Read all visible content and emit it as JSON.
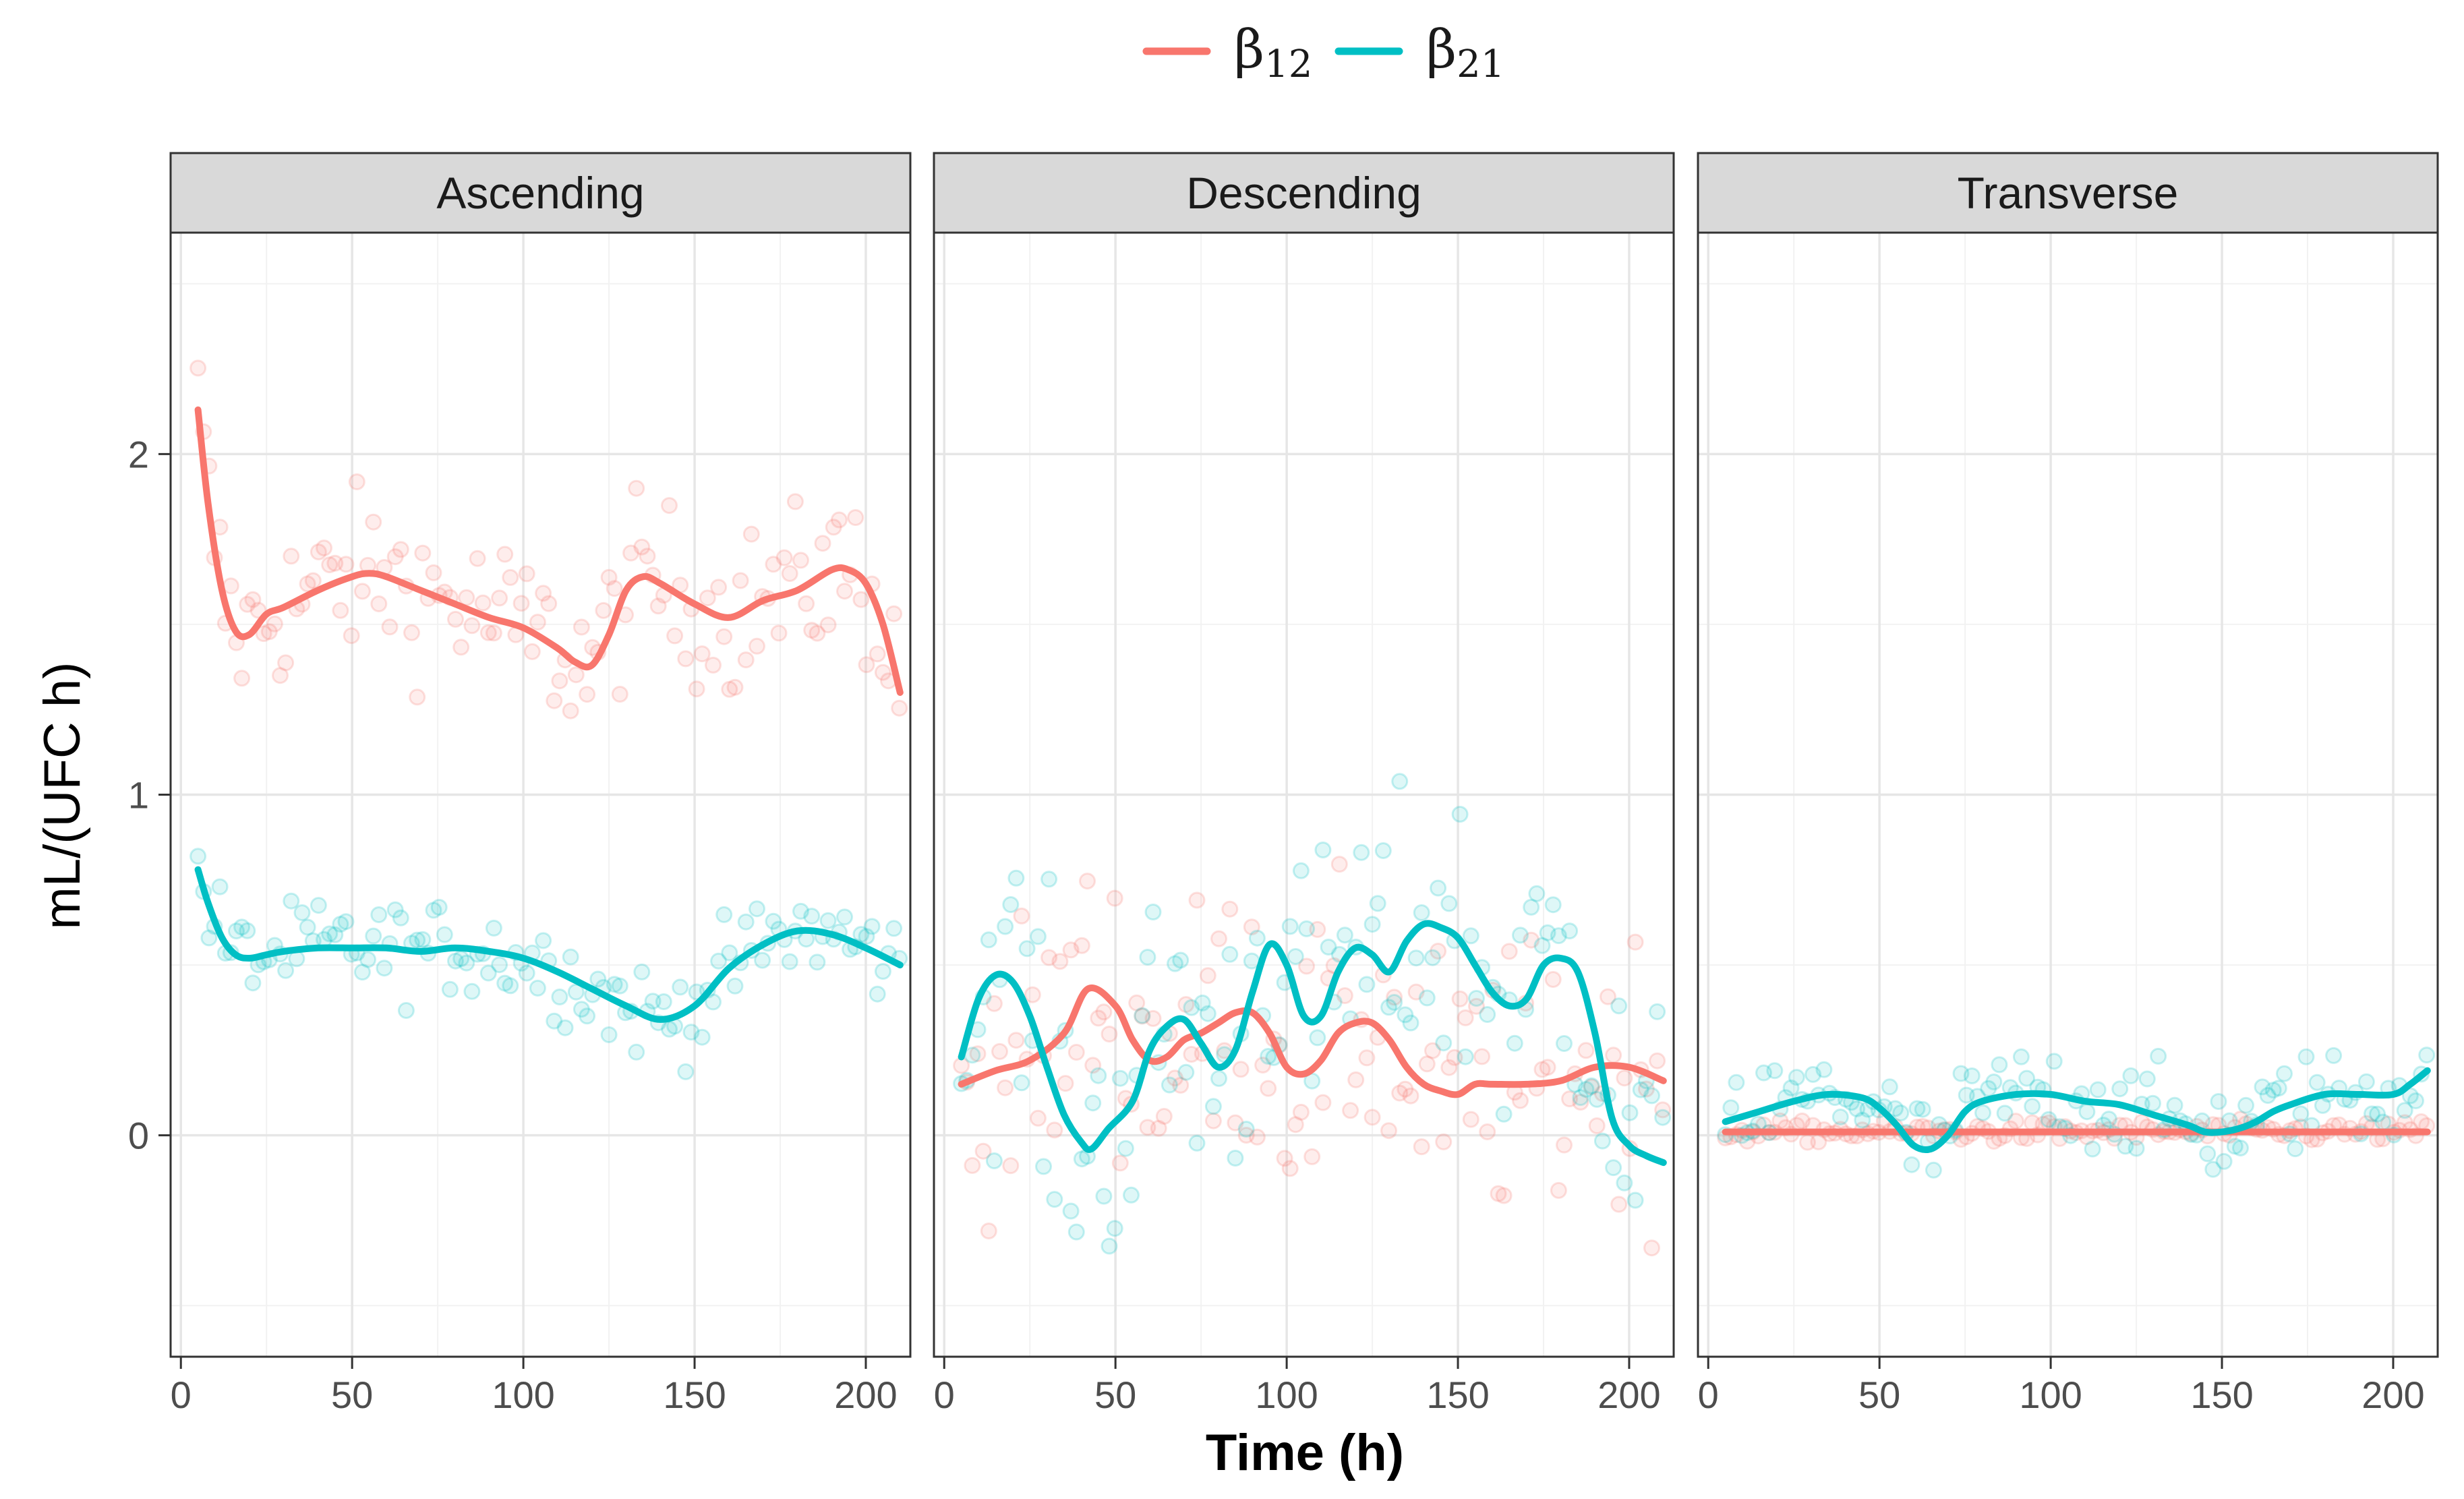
{
  "chart_data": {
    "type": "line",
    "layout": "faceted",
    "xlabel": "Time (h)",
    "ylabel": "mL/(UFC h)",
    "xlim": [
      -3,
      213
    ],
    "ylim": [
      -0.65,
      2.65
    ],
    "x_ticks": [
      0,
      50,
      100,
      150,
      200
    ],
    "y_ticks": [
      0,
      1,
      2
    ],
    "grid": true,
    "legend_position": "top",
    "legend": [
      {
        "symbol": "β",
        "sub": "12",
        "color": "#f8766d"
      },
      {
        "symbol": "β",
        "sub": "21",
        "color": "#00bfc4"
      }
    ],
    "panels": [
      {
        "name": "Ascending",
        "series": [
          {
            "name": "β12",
            "color": "#f8766d",
            "x": [
              5,
              8,
              12,
              16,
              20,
              25,
              30,
              40,
              50,
              55,
              60,
              70,
              80,
              90,
              100,
              110,
              115,
              120,
              125,
              130,
              135,
              140,
              150,
              160,
              170,
              180,
              190,
              195,
              200,
              205,
              210
            ],
            "y": [
              2.13,
              1.85,
              1.6,
              1.48,
              1.47,
              1.53,
              1.55,
              1.6,
              1.64,
              1.65,
              1.64,
              1.6,
              1.56,
              1.52,
              1.49,
              1.43,
              1.39,
              1.38,
              1.47,
              1.6,
              1.64,
              1.62,
              1.56,
              1.52,
              1.57,
              1.6,
              1.66,
              1.66,
              1.62,
              1.5,
              1.3
            ]
          },
          {
            "name": "β21",
            "color": "#00bfc4",
            "x": [
              5,
              8,
              12,
              16,
              20,
              25,
              30,
              40,
              50,
              60,
              70,
              80,
              90,
              100,
              110,
              120,
              130,
              140,
              150,
              160,
              170,
              180,
              190,
              200,
              210
            ],
            "y": [
              0.78,
              0.68,
              0.58,
              0.53,
              0.52,
              0.53,
              0.54,
              0.55,
              0.55,
              0.55,
              0.54,
              0.55,
              0.54,
              0.52,
              0.48,
              0.43,
              0.38,
              0.34,
              0.38,
              0.49,
              0.56,
              0.6,
              0.59,
              0.55,
              0.5
            ]
          }
        ]
      },
      {
        "name": "Descending",
        "series": [
          {
            "name": "β12",
            "color": "#f8766d",
            "x": [
              5,
              15,
              25,
              35,
              42,
              50,
              55,
              60,
              65,
              70,
              75,
              80,
              85,
              90,
              95,
              100,
              105,
              110,
              115,
              120,
              125,
              130,
              135,
              140,
              145,
              150,
              155,
              160,
              170,
              180,
              190,
              200,
              210
            ],
            "y": [
              0.15,
              0.19,
              0.22,
              0.3,
              0.43,
              0.38,
              0.28,
              0.22,
              0.23,
              0.28,
              0.3,
              0.33,
              0.36,
              0.36,
              0.3,
              0.2,
              0.18,
              0.22,
              0.3,
              0.33,
              0.33,
              0.28,
              0.2,
              0.15,
              0.13,
              0.12,
              0.15,
              0.15,
              0.15,
              0.16,
              0.2,
              0.2,
              0.16
            ]
          },
          {
            "name": "β21",
            "color": "#00bfc4",
            "x": [
              5,
              10,
              15,
              20,
              25,
              30,
              35,
              40,
              43,
              48,
              55,
              60,
              65,
              70,
              75,
              80,
              85,
              90,
              95,
              100,
              105,
              110,
              115,
              120,
              125,
              130,
              135,
              140,
              145,
              150,
              155,
              160,
              165,
              170,
              175,
              180,
              185,
              190,
              195,
              200,
              205,
              210
            ],
            "y": [
              0.23,
              0.4,
              0.47,
              0.45,
              0.35,
              0.2,
              0.06,
              -0.02,
              -0.04,
              0.02,
              0.1,
              0.25,
              0.32,
              0.34,
              0.27,
              0.2,
              0.25,
              0.42,
              0.56,
              0.5,
              0.35,
              0.35,
              0.48,
              0.55,
              0.53,
              0.48,
              0.57,
              0.62,
              0.61,
              0.58,
              0.5,
              0.42,
              0.38,
              0.4,
              0.5,
              0.52,
              0.48,
              0.3,
              0.05,
              -0.03,
              -0.06,
              -0.08
            ]
          }
        ]
      },
      {
        "name": "Transverse",
        "series": [
          {
            "name": "β12",
            "color": "#f8766d",
            "x": [
              5,
              50,
              100,
              150,
              200,
              210
            ],
            "y": [
              0.01,
              0.01,
              0.01,
              0.01,
              0.01,
              0.01
            ]
          },
          {
            "name": "β21",
            "color": "#00bfc4",
            "x": [
              5,
              15,
              25,
              35,
              45,
              50,
              55,
              60,
              65,
              70,
              75,
              80,
              90,
              100,
              110,
              120,
              130,
              140,
              145,
              150,
              155,
              160,
              165,
              170,
              180,
              190,
              200,
              205,
              210
            ],
            "y": [
              0.04,
              0.07,
              0.1,
              0.12,
              0.11,
              0.08,
              0.03,
              -0.03,
              -0.04,
              0.0,
              0.07,
              0.1,
              0.12,
              0.12,
              0.1,
              0.09,
              0.06,
              0.03,
              0.01,
              0.01,
              0.02,
              0.04,
              0.07,
              0.09,
              0.12,
              0.12,
              0.12,
              0.15,
              0.19
            ]
          }
        ]
      }
    ]
  }
}
